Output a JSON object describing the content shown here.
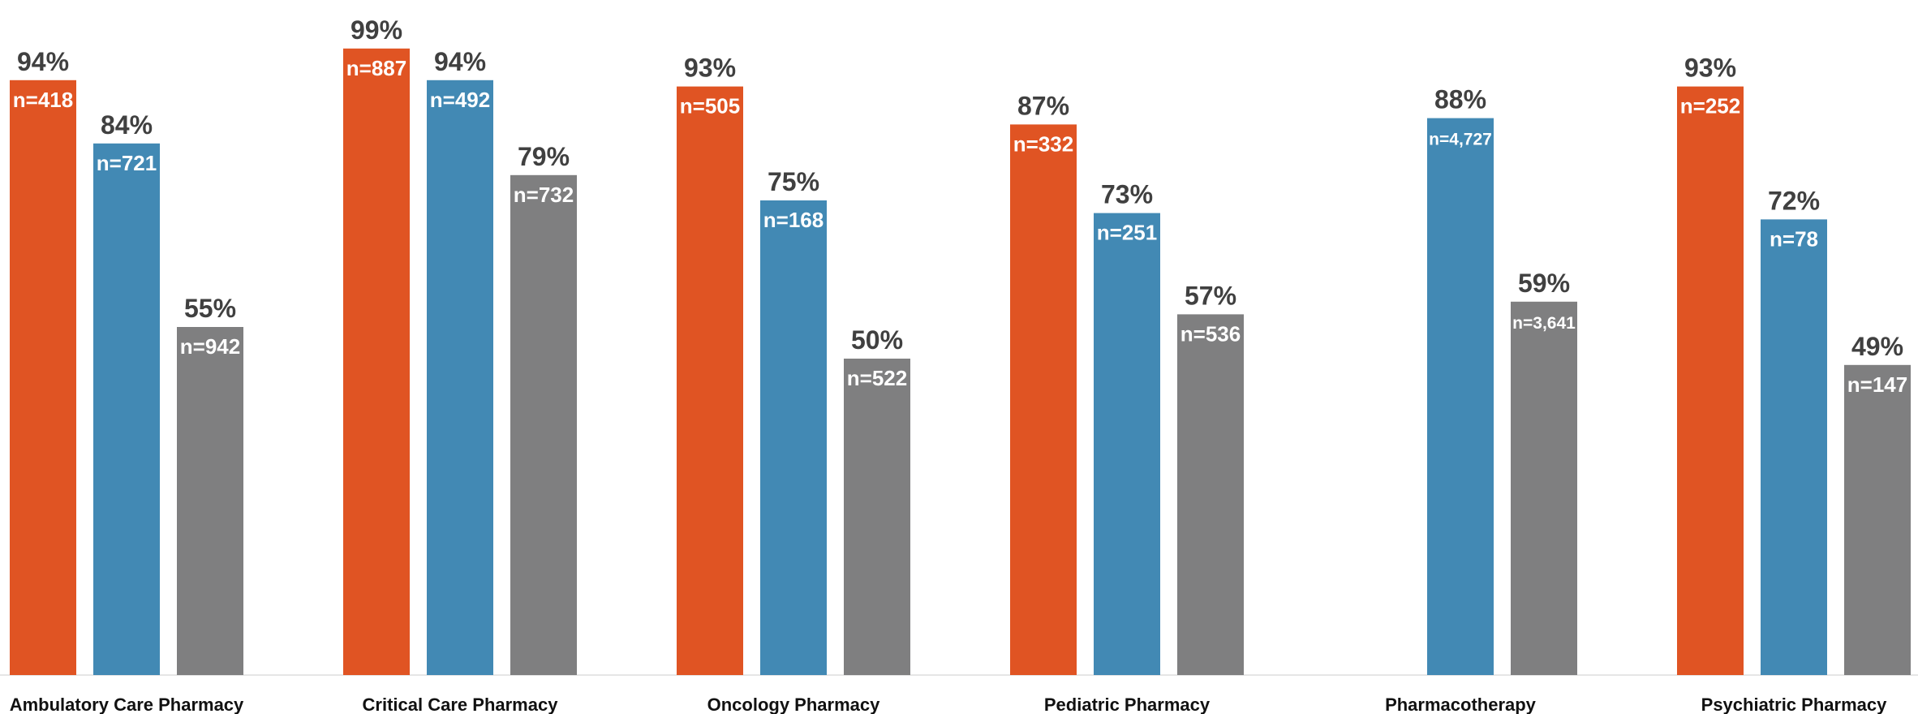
{
  "chart_data": {
    "type": "bar",
    "title": "",
    "xlabel": "",
    "ylabel": "",
    "ylim": [
      0,
      100
    ],
    "grid": false,
    "legend": "none",
    "colors": [
      "#e05423",
      "#4289b4",
      "#7f7f80"
    ],
    "categories": [
      "Ambulatory Care Pharmacy",
      "Critical Care Pharmacy",
      "Oncology Pharmacy",
      "Pediatric Pharmacy",
      "Pharmacotherapy",
      "Psychiatric Pharmacy"
    ],
    "series": [
      {
        "values": [
          94,
          99,
          93,
          87,
          null,
          93
        ],
        "labels": [
          "94%",
          "99%",
          "93%",
          "87%",
          null,
          "93%"
        ],
        "n_labels": [
          "n=418",
          "n=887",
          "n=505",
          "n=332",
          null,
          "n=252"
        ]
      },
      {
        "values": [
          84,
          94,
          75,
          73,
          88,
          72
        ],
        "labels": [
          "84%",
          "94%",
          "75%",
          "73%",
          "88%",
          "72%"
        ],
        "n_labels": [
          "n=721",
          "n=492",
          "n=168",
          "n=251",
          "n=4,727",
          "n=78"
        ]
      },
      {
        "values": [
          55,
          79,
          50,
          57,
          59,
          49
        ],
        "labels": [
          "55%",
          "79%",
          "50%",
          "57%",
          "59%",
          "49%"
        ],
        "n_labels": [
          "n=942",
          "n=732",
          "n=522",
          "n=536",
          "n=3,641",
          "n=147"
        ]
      }
    ]
  }
}
